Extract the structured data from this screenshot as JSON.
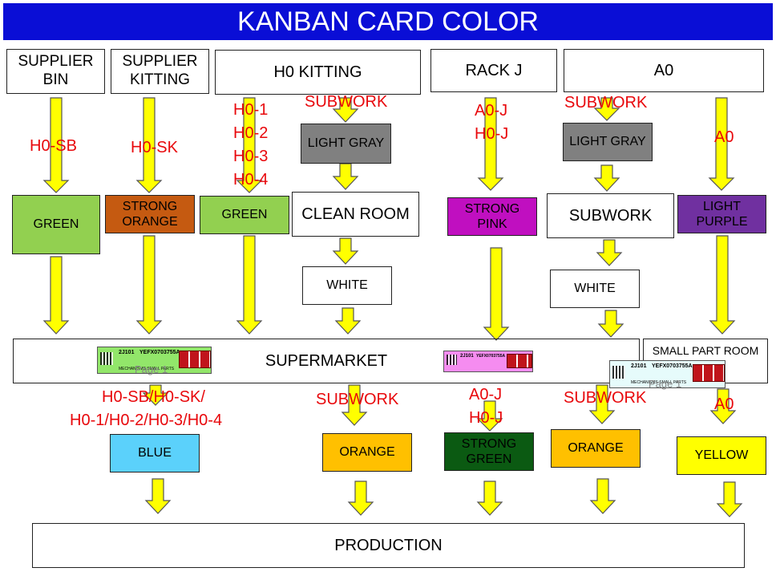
{
  "title": "KANBAN CARD COLOR",
  "sources": {
    "supplier_bin": "SUPPLIER BIN",
    "supplier_kitting": "SUPPLIER KITTING",
    "h0_kitting": "H0 KITTING",
    "rack_j": "RACK J",
    "a0": "A0"
  },
  "codes_top": {
    "h0_sb": "H0-SB",
    "h0_sk": "H0-SK",
    "h0_list": [
      "H0-1",
      "H0-2",
      "H0-3",
      "H0-4"
    ],
    "subwork_1": "SUBWORK",
    "rack_j_list": [
      "A0-J",
      "H0-J"
    ],
    "subwork_2": "SUBWORK",
    "a0": "A0"
  },
  "cards_top": {
    "green_1": "GREEN",
    "strong_orange": "STRONG ORANGE",
    "green_2": "GREEN",
    "light_gray_1": "LIGHT GRAY",
    "clean_room": "CLEAN ROOM",
    "white_1": "WHITE",
    "strong_pink": "STRONG PINK",
    "light_gray_2": "LIGHT GRAY",
    "subwork": "SUBWORK",
    "white_2": "WHITE",
    "light_purple": "LIGHT PURPLE"
  },
  "supermarket": "SUPERMARKET",
  "small_part_room": "SMALL PART ROOM",
  "kanban_label": {
    "code": "2J101",
    "part": "YEFX0703755A",
    "desc": "MECHANISMS SMALL PARTS",
    "ghost_1": "Page 1",
    "ghost_2": "Page 1"
  },
  "codes_bottom": {
    "h0_combo_1": "H0-SB/H0-SK/",
    "h0_combo_2": "H0-1/H0-2/H0-3/H0-4",
    "subwork_1": "SUBWORK",
    "rack_j_list": [
      "A0-J",
      "H0-J"
    ],
    "subwork_2": "SUBWORK",
    "a0": "A0"
  },
  "cards_bottom": {
    "blue": "BLUE",
    "orange_1": "ORANGE",
    "strong_green": "STRONG GREEN",
    "orange_2": "ORANGE",
    "yellow": "YELLOW"
  },
  "production": "PRODUCTION",
  "colors": {
    "title_bg": "#0a0ed6",
    "arrow_fill": "#ffff00",
    "code_text": "#e8070b",
    "green": "#92d050",
    "strong_orange": "#c55a11",
    "light_gray": "#808080",
    "strong_pink": "#c00fc0",
    "light_purple": "#7030a0",
    "blue": "#5bd1fb",
    "orange": "#ffc000",
    "strong_green": "#0b5a12",
    "yellow": "#ffff00"
  }
}
